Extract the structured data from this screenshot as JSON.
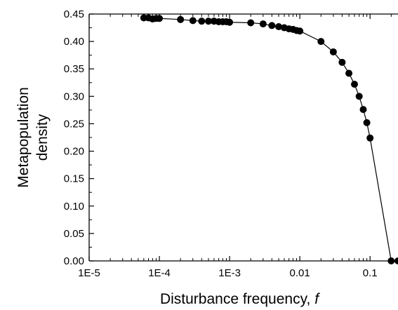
{
  "chart_data": {
    "type": "line",
    "xlabel_prefix": "Disturbance frequency, ",
    "xlabel_var": "f",
    "ylabel_lines": [
      "Metapopulation",
      "density"
    ],
    "x_scale": "log",
    "xlim": [
      1e-05,
      0.25
    ],
    "ylim": [
      0.0,
      0.45
    ],
    "x_ticks": [
      {
        "value": 1e-05,
        "label": "1E-5"
      },
      {
        "value": 0.0001,
        "label": "1E-4"
      },
      {
        "value": 0.001,
        "label": "1E-3"
      },
      {
        "value": 0.01,
        "label": "0.01"
      },
      {
        "value": 0.1,
        "label": "0.1"
      }
    ],
    "y_ticks": [
      {
        "value": 0.0,
        "label": "0.00"
      },
      {
        "value": 0.05,
        "label": "0.05"
      },
      {
        "value": 0.1,
        "label": "0.10"
      },
      {
        "value": 0.15,
        "label": "0.15"
      },
      {
        "value": 0.2,
        "label": "0.20"
      },
      {
        "value": 0.25,
        "label": "0.25"
      },
      {
        "value": 0.3,
        "label": "0.30"
      },
      {
        "value": 0.35,
        "label": "0.35"
      },
      {
        "value": 0.4,
        "label": "0.40"
      },
      {
        "value": 0.45,
        "label": "0.45"
      }
    ],
    "series": [
      {
        "marker": "filled-circle",
        "color": "#000000",
        "points": [
          {
            "x": 6e-05,
            "y": 0.443
          },
          {
            "x": 7e-05,
            "y": 0.443
          },
          {
            "x": 8e-05,
            "y": 0.441
          },
          {
            "x": 9e-05,
            "y": 0.442
          },
          {
            "x": 0.0001,
            "y": 0.442
          },
          {
            "x": 0.0002,
            "y": 0.44
          },
          {
            "x": 0.0003,
            "y": 0.438
          },
          {
            "x": 0.0004,
            "y": 0.437
          },
          {
            "x": 0.0005,
            "y": 0.437
          },
          {
            "x": 0.0006,
            "y": 0.437
          },
          {
            "x": 0.0007,
            "y": 0.436
          },
          {
            "x": 0.0008,
            "y": 0.436
          },
          {
            "x": 0.0009,
            "y": 0.436
          },
          {
            "x": 0.001,
            "y": 0.435
          },
          {
            "x": 0.002,
            "y": 0.434
          },
          {
            "x": 0.003,
            "y": 0.432
          },
          {
            "x": 0.004,
            "y": 0.429
          },
          {
            "x": 0.005,
            "y": 0.427
          },
          {
            "x": 0.006,
            "y": 0.425
          },
          {
            "x": 0.007,
            "y": 0.423
          },
          {
            "x": 0.008,
            "y": 0.422
          },
          {
            "x": 0.009,
            "y": 0.42
          },
          {
            "x": 0.01,
            "y": 0.419
          },
          {
            "x": 0.02,
            "y": 0.4
          },
          {
            "x": 0.03,
            "y": 0.381
          },
          {
            "x": 0.04,
            "y": 0.362
          },
          {
            "x": 0.05,
            "y": 0.342
          },
          {
            "x": 0.06,
            "y": 0.322
          },
          {
            "x": 0.07,
            "y": 0.3
          },
          {
            "x": 0.08,
            "y": 0.276
          },
          {
            "x": 0.09,
            "y": 0.252
          },
          {
            "x": 0.1,
            "y": 0.224
          },
          {
            "x": 0.2,
            "y": 0.0
          },
          {
            "x": 0.25,
            "y": 0.0
          }
        ]
      }
    ],
    "grid": false
  }
}
